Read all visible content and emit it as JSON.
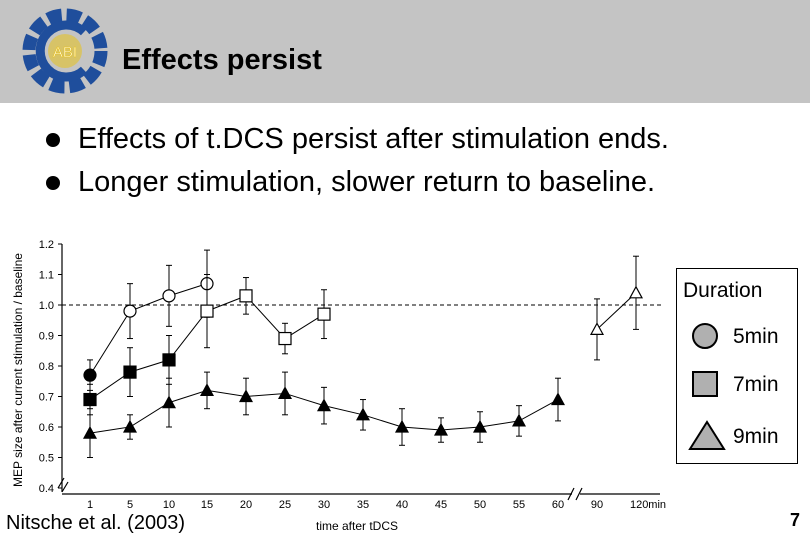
{
  "header": {
    "title": "Effects persist",
    "logo_text": "ABI"
  },
  "bullets": [
    "Effects of t.DCS persist after stimulation ends.",
    "Longer stimulation, slower return to baseline."
  ],
  "citation": "Nitsche et al. (2003)",
  "page_number": "7",
  "legend": {
    "title": "Duration",
    "items": [
      {
        "label": "5min",
        "marker": "circle"
      },
      {
        "label": "7min",
        "marker": "square"
      },
      {
        "label": "9min",
        "marker": "triangle"
      }
    ]
  },
  "colors": {
    "header_bg": "#c4c4c4",
    "logo_blue": "#1f4e9c",
    "logo_yellow": "#e8c21c",
    "legend_fill": "#b0b0b0"
  },
  "chart_data": {
    "type": "line",
    "xlabel": "time after tDCS",
    "ylabel": "MEP size after current stimulation / baseline",
    "ylim": [
      0.4,
      1.2
    ],
    "yticks": [
      "0.4",
      "0.5",
      "0.6",
      "0.7",
      "0.8",
      "0.9",
      "1.0",
      "1.1",
      "1.2"
    ],
    "x_categories": [
      "1",
      "5",
      "10",
      "15",
      "20",
      "25",
      "30",
      "35",
      "40",
      "45",
      "50",
      "55",
      "60",
      "90",
      "120min"
    ],
    "baseline": 1.0,
    "series": [
      {
        "marker": "circle",
        "filled_first": true,
        "x": [
          "1",
          "5",
          "10",
          "15"
        ],
        "y": [
          0.77,
          0.98,
          1.03,
          1.07
        ],
        "err": [
          0.05,
          0.09,
          0.1,
          0.11
        ]
      },
      {
        "marker": "square",
        "filled_until": 2,
        "x": [
          "1",
          "5",
          "10",
          "15",
          "20",
          "25",
          "30"
        ],
        "y": [
          0.69,
          0.78,
          0.82,
          0.98,
          1.03,
          0.89,
          0.97
        ],
        "err": [
          0.05,
          0.08,
          0.08,
          0.12,
          0.06,
          0.05,
          0.08
        ]
      },
      {
        "marker": "triangle",
        "filled_until": 12,
        "x": [
          "1",
          "5",
          "10",
          "15",
          "20",
          "25",
          "30",
          "35",
          "40",
          "45",
          "50",
          "55",
          "60",
          "90",
          "120min"
        ],
        "y": [
          0.58,
          0.6,
          0.68,
          0.72,
          0.7,
          0.71,
          0.67,
          0.64,
          0.6,
          0.59,
          0.6,
          0.62,
          0.69,
          0.92,
          1.04
        ],
        "err": [
          0.08,
          0.04,
          0.08,
          0.06,
          0.06,
          0.07,
          0.06,
          0.05,
          0.06,
          0.04,
          0.05,
          0.05,
          0.07,
          0.1,
          0.12
        ]
      }
    ]
  }
}
